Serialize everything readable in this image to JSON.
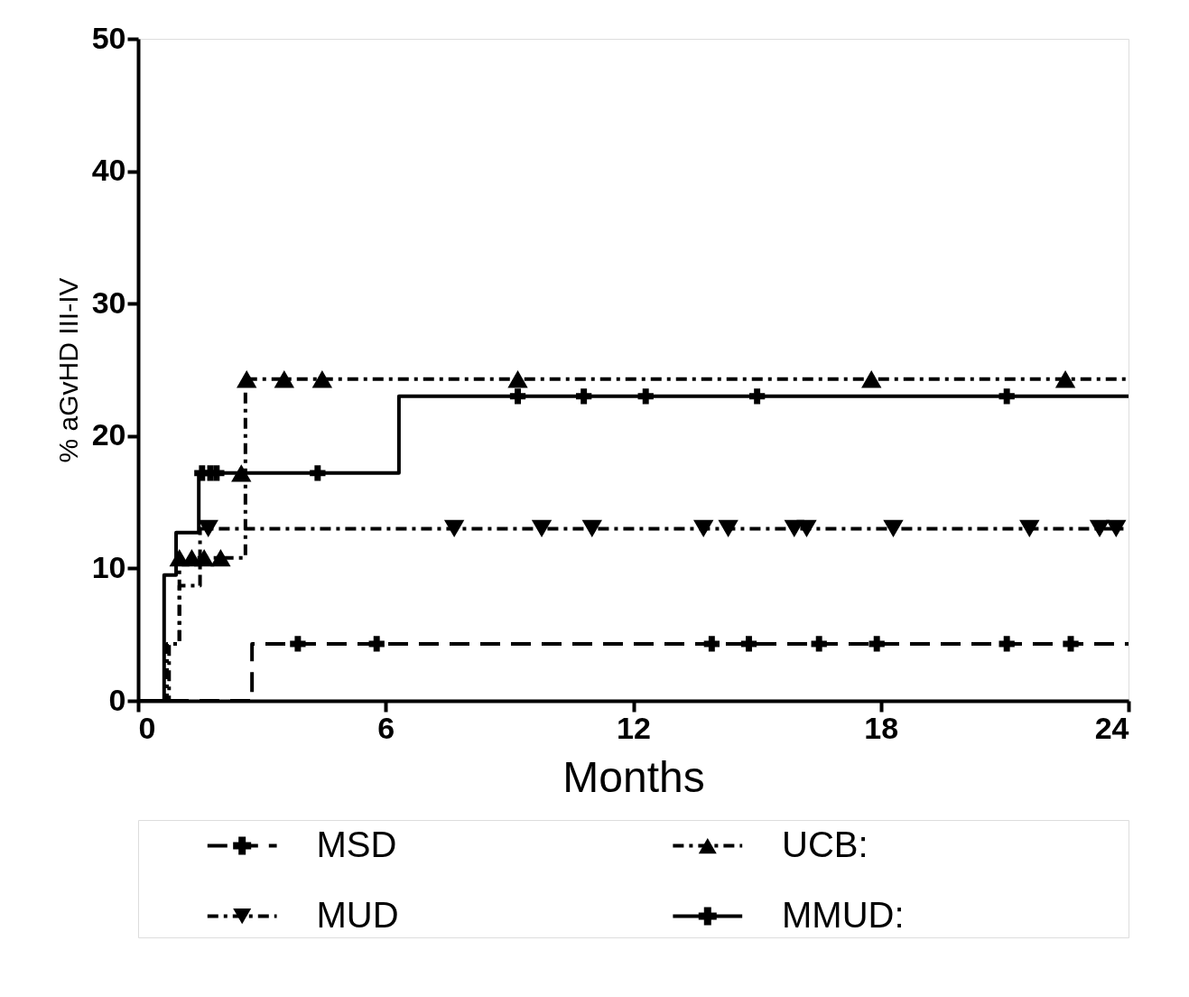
{
  "chart_data": {
    "type": "step",
    "xlabel": "Months",
    "ylabel": "% aGvHD  III-IV",
    "xlim": [
      0,
      24
    ],
    "xticks": [
      0,
      6,
      12,
      18,
      24
    ],
    "ylim": [
      0,
      50
    ],
    "yticks": [
      0,
      10,
      20,
      30,
      40,
      50
    ],
    "grid": false,
    "legend": "bottom",
    "series": [
      {
        "name": "MSD",
        "color": "#000000",
        "line_style": "dashed",
        "x": [
          0,
          2.76,
          24
        ],
        "values": [
          0,
          4.3,
          4.3
        ]
      },
      {
        "name": "MUD",
        "color": "#000000",
        "line_style": "dotted",
        "x": [
          0,
          0.75,
          1.0,
          1.5,
          23.9
        ],
        "values": [
          0,
          4.3,
          8.7,
          13.0,
          13.0
        ]
      },
      {
        "name": "UCB:",
        "color": "#000000",
        "line_style": "dotted",
        "x": [
          0,
          0.7,
          1.0,
          2.6,
          24
        ],
        "values": [
          0,
          4.3,
          10.8,
          24.3,
          24.3
        ]
      },
      {
        "name": "MMUD:",
        "color": "#000000",
        "line_style": "solid",
        "x": [
          0,
          0.63,
          0.92,
          1.47,
          6.32,
          24
        ],
        "values": [
          0,
          9.5,
          12.7,
          17.2,
          23.0,
          23.0
        ]
      },
      {
        "type": "scatter",
        "color": "#000000",
        "marker": "cross",
        "x": [
          3.87,
          5.78,
          13.9,
          14.8,
          16.5,
          17.9,
          21.05,
          22.6
        ],
        "values": [
          4.3,
          4.3,
          4.3,
          4.3,
          4.3,
          4.3,
          4.3,
          4.3
        ]
      },
      {
        "type": "scatter",
        "color": "#000000",
        "marker": "triangle-down",
        "x": [
          1.7,
          7.66,
          9.78,
          11.0,
          13.7,
          14.3,
          15.9,
          16.2,
          18.3,
          21.6,
          23.3,
          23.7
        ],
        "values": [
          13.0,
          13.0,
          13.0,
          13.0,
          13.0,
          13.0,
          13.0,
          13.0,
          13.0,
          13.0,
          13.0,
          13.0
        ]
      },
      {
        "type": "scatter",
        "color": "#000000",
        "marker": "triangle",
        "x": [
          1.0,
          1.3,
          1.6,
          2.0,
          2.5,
          2.63,
          3.54,
          4.46,
          9.2,
          17.77,
          22.47
        ],
        "values": [
          10.8,
          10.8,
          10.8,
          10.8,
          17.2,
          24.3,
          24.3,
          24.3,
          24.3,
          24.3,
          24.3
        ]
      },
      {
        "type": "scatter",
        "color": "#000000",
        "marker": "cross",
        "x": [
          1.55,
          1.75,
          1.9,
          4.35,
          9.2,
          10.8,
          12.3,
          15.0,
          21.05
        ],
        "values": [
          17.2,
          17.2,
          17.2,
          17.2,
          23.0,
          23.0,
          23.0,
          23.0,
          23.0
        ]
      }
    ]
  }
}
